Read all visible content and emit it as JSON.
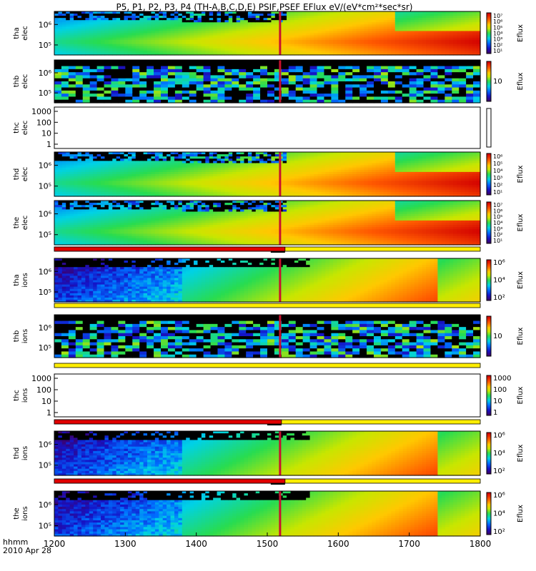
{
  "title": "P5, P1, P2, P3, P4 (TH-A,B,C,D,E) PSIF,PSEF EFlux eV/(eV*cm²*sec*sr)",
  "chart_data": {
    "type": "heatmap",
    "x_axis": {
      "range": [
        1200,
        1800
      ],
      "ticks": [
        "1200",
        "1300",
        "1400",
        "1500",
        "1600",
        "1700",
        "1800"
      ],
      "label_line1": "hhmm",
      "label_line2": "2010 Apr 28"
    },
    "event_marker_x": 1518,
    "panels": [
      {
        "probe": "tha",
        "species": "elec",
        "y_ticks": [
          "10⁶",
          "10⁵"
        ],
        "cbar_label": "Eflux",
        "cbar_ticks": [
          "10⁷",
          "10⁶",
          "10⁵",
          "10⁴",
          "10³",
          "10²",
          "10¹"
        ],
        "kind": "electron",
        "style": "dense"
      },
      {
        "probe": "thb",
        "species": "elec",
        "y_ticks": [
          "10⁶",
          "10⁵"
        ],
        "cbar_label": "Eflux",
        "cbar_ticks": [
          "10"
        ],
        "kind": "electron",
        "style": "sparse"
      },
      {
        "probe": "thc",
        "species": "elec",
        "y_ticks": [
          "1000",
          "100",
          "10",
          "1"
        ],
        "cbar_label": "",
        "cbar_ticks": [],
        "kind": "empty",
        "style": "empty"
      },
      {
        "probe": "thd",
        "species": "elec",
        "y_ticks": [
          "10⁶",
          "10⁵"
        ],
        "cbar_label": "Eflux",
        "cbar_ticks": [
          "10⁶",
          "10⁵",
          "10⁴",
          "10³",
          "10²",
          "10¹"
        ],
        "kind": "electron",
        "style": "dense"
      },
      {
        "probe": "the",
        "species": "elec",
        "y_ticks": [
          "10⁶",
          "10⁵"
        ],
        "cbar_label": "Eflux",
        "cbar_ticks": [
          "10⁷",
          "10⁶",
          "10⁵",
          "10⁴",
          "10³",
          "10²",
          "10¹"
        ],
        "kind": "electron",
        "style": "dense"
      },
      {
        "probe": "tha",
        "species": "ions",
        "y_ticks": [
          "10⁶",
          "10⁵"
        ],
        "cbar_label": "Eflux",
        "cbar_ticks": [
          "10⁶",
          "10⁴",
          "10²"
        ],
        "kind": "ion",
        "style": "dense"
      },
      {
        "probe": "thb",
        "species": "ions",
        "y_ticks": [
          "10⁶",
          "10⁵"
        ],
        "cbar_label": "Eflux",
        "cbar_ticks": [
          "10"
        ],
        "kind": "ion",
        "style": "sparse"
      },
      {
        "probe": "thc",
        "species": "ions",
        "y_ticks": [
          "1000",
          "100",
          "10",
          "1"
        ],
        "cbar_label": "Eflux",
        "cbar_ticks": [
          "1000",
          "100",
          "10",
          "1"
        ],
        "kind": "empty",
        "style": "empty"
      },
      {
        "probe": "thd",
        "species": "ions",
        "y_ticks": [
          "10⁶",
          "10⁵"
        ],
        "cbar_label": "Eflux",
        "cbar_ticks": [
          "10⁶",
          "10⁴",
          "10²"
        ],
        "kind": "ion",
        "style": "dense"
      },
      {
        "probe": "the",
        "species": "ions",
        "y_ticks": [
          "10⁶",
          "10⁵"
        ],
        "cbar_label": "Eflux",
        "cbar_ticks": [
          "10⁶",
          "10⁴",
          "10²"
        ],
        "kind": "ion",
        "style": "dense"
      }
    ],
    "mode_bars": [
      {
        "after_panel": 4,
        "red_until_x": 1525
      },
      {
        "after_panel": 5,
        "red_until_x": null
      },
      {
        "after_panel": 6,
        "red_until_x": null
      },
      {
        "after_panel": 7,
        "red_until_x": 1520
      },
      {
        "after_panel": 8,
        "red_until_x": 1525
      }
    ]
  }
}
